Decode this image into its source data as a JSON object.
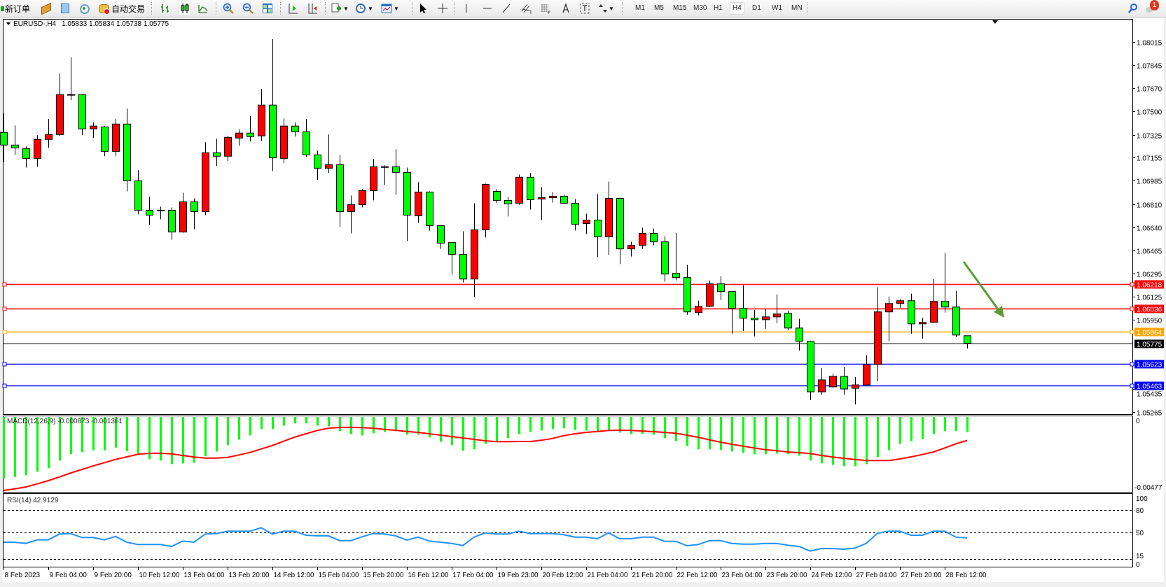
{
  "toolbar": {
    "new_order_label": "新订单",
    "auto_trading_label": "自动交易",
    "icons": [
      "new-order-icon",
      "market-watch-icon",
      "navigator-icon",
      "signals-icon",
      "auto-trading-icon",
      "bar-chart-icon",
      "candlestick-icon",
      "line-chart-icon",
      "zoom-in-icon",
      "zoom-out-icon",
      "tile-windows-icon",
      "auto-scroll-icon",
      "chart-shift-icon",
      "indicators-icon",
      "periods-icon",
      "templates-icon",
      "cursor-icon",
      "crosshair-icon",
      "vertical-line-icon",
      "horizontal-line-icon",
      "trendline-icon",
      "equidistant-channel-icon",
      "fibonacci-icon",
      "text-icon",
      "text-label-icon",
      "arrows-icon",
      "search-icon",
      "notification-icon"
    ],
    "timeframes": [
      "M1",
      "M5",
      "M15",
      "M30",
      "H1",
      "H4",
      "D1",
      "W1",
      "MN"
    ],
    "active_timeframe": "H4",
    "notification_count": "1"
  },
  "chart": {
    "symbol": "EURUSD-,H4",
    "ohlc_text": "1.05833 1.05834 1.05738 1.05775",
    "price_axis_labels": [
      "1.08015",
      "1.07845",
      "1.07670",
      "1.07500",
      "1.07325",
      "1.07155",
      "1.06985",
      "1.06810",
      "1.06640",
      "1.06465",
      "1.06295",
      "1.06125",
      "1.05950",
      "1.05435",
      "1.05265"
    ],
    "horizontal_lines": [
      {
        "price": "1.06218",
        "color": "#ff0000"
      },
      {
        "price": "1.06036",
        "color": "#ff0000"
      },
      {
        "price": "1.05864",
        "color": "#ffa500"
      },
      {
        "price": "1.05775",
        "color": "#000000",
        "current": true
      },
      {
        "price": "1.05623",
        "color": "#0000ff"
      },
      {
        "price": "1.05463",
        "color": "#0000ff"
      }
    ],
    "bull_color": "#ff0000",
    "bear_color": "#00ff00",
    "arrow_color": "#5a9e32",
    "time_labels": [
      "8 Feb 2023",
      "9 Feb 04:00",
      "9 Feb 20:00",
      "10 Feb 12:00",
      "13 Feb 04:00",
      "13 Feb 20:00",
      "14 Feb 12:00",
      "15 Feb 04:00",
      "15 Feb 20:00",
      "16 Feb 12:00",
      "17 Feb 04:00",
      "19 Feb 23:00",
      "20 Feb 12:00",
      "21 Feb 04:00",
      "21 Feb 20:00",
      "22 Feb 12:00",
      "23 Feb 04:00",
      "23 Feb 20:00",
      "24 Feb 12:00",
      "27 Feb 04:00",
      "27 Feb 20:00",
      "28 Feb 12:00"
    ]
  },
  "macd": {
    "label": "MACD(12,26,9) -0.000873 -0.001361",
    "axis_labels": [
      "0",
      "-0.00477"
    ],
    "histogram_color": "#00ff00",
    "signal_color": "#ff0000"
  },
  "rsi": {
    "label": "RSI(14) 42.9129",
    "levels": [
      "80",
      "50",
      "15"
    ],
    "axis_labels": [
      "100",
      "80",
      "50",
      "15",
      "0"
    ],
    "line_color": "#1e90ff"
  },
  "chart_data": {
    "type": "candlestick",
    "timeframe": "H4",
    "ohlc": [
      [
        1.07343,
        1.07483,
        1.07124,
        1.07249
      ],
      [
        1.07249,
        1.07395,
        1.07176,
        1.07228
      ],
      [
        1.07223,
        1.07239,
        1.07082,
        1.0715
      ],
      [
        1.0715,
        1.07322,
        1.07088,
        1.07291
      ],
      [
        1.07291,
        1.07442,
        1.07228,
        1.07327
      ],
      [
        1.07327,
        1.0778,
        1.07317,
        1.07624
      ],
      [
        1.07624,
        1.079,
        1.07582,
        1.0762
      ],
      [
        1.07624,
        1.0763,
        1.07322,
        1.07369
      ],
      [
        1.07369,
        1.07416,
        1.07301,
        1.0739
      ],
      [
        1.07384,
        1.0739,
        1.07166,
        1.07202
      ],
      [
        1.07202,
        1.07442,
        1.07166,
        1.07405
      ],
      [
        1.07405,
        1.0752,
        1.06905,
        1.06983
      ],
      [
        1.06983,
        1.07062,
        1.06734,
        1.06765
      ],
      [
        1.06765,
        1.06864,
        1.06655,
        1.06728
      ],
      [
        1.06765,
        1.06791,
        1.06697,
        1.06762
      ],
      [
        1.06765,
        1.06786,
        1.06546,
        1.06603
      ],
      [
        1.06603,
        1.06895,
        1.06598,
        1.06827
      ],
      [
        1.06827,
        1.06853,
        1.06624,
        1.06754
      ],
      [
        1.06754,
        1.0727,
        1.06728,
        1.07192
      ],
      [
        1.07192,
        1.07296,
        1.07093,
        1.07166
      ],
      [
        1.07166,
        1.07317,
        1.07129,
        1.07306
      ],
      [
        1.07301,
        1.07364,
        1.07244,
        1.07338
      ],
      [
        1.07338,
        1.07463,
        1.07275,
        1.07312
      ],
      [
        1.07317,
        1.07666,
        1.0728,
        1.07546
      ],
      [
        1.07546,
        1.08035,
        1.07056,
        1.07155
      ],
      [
        1.0715,
        1.07447,
        1.07114,
        1.0739
      ],
      [
        1.0739,
        1.07416,
        1.07312,
        1.07348
      ],
      [
        1.07348,
        1.07442,
        1.07161,
        1.07176
      ],
      [
        1.07176,
        1.07207,
        1.06989,
        1.07077
      ],
      [
        1.07077,
        1.07327,
        1.07041,
        1.07103
      ],
      [
        1.07103,
        1.07176,
        1.0664,
        1.06754
      ],
      [
        1.06754,
        1.06874,
        1.06593,
        1.06806
      ],
      [
        1.06806,
        1.06921,
        1.06786,
        1.06911
      ],
      [
        1.06911,
        1.07145,
        1.06838,
        1.07088
      ],
      [
        1.07088,
        1.07098,
        1.06952,
        1.07085
      ],
      [
        1.07088,
        1.07218,
        1.06879,
        1.07046
      ],
      [
        1.07046,
        1.07082,
        1.06536,
        1.06728
      ],
      [
        1.06723,
        1.06973,
        1.06671,
        1.069
      ],
      [
        1.069,
        1.06905,
        1.06614,
        1.0665
      ],
      [
        1.0665,
        1.06655,
        1.06478,
        1.0652
      ],
      [
        1.06525,
        1.06528,
        1.06286,
        1.06437
      ],
      [
        1.06437,
        1.06609,
        1.06228,
        1.06254
      ],
      [
        1.06254,
        1.06817,
        1.06119,
        1.06619
      ],
      [
        1.06619,
        1.06962,
        1.06562,
        1.06957
      ],
      [
        1.06905,
        1.06921,
        1.06817,
        1.06838
      ],
      [
        1.06838,
        1.06864,
        1.06718,
        1.06812
      ],
      [
        1.06817,
        1.0703,
        1.06806,
        1.0701
      ],
      [
        1.0701,
        1.07041,
        1.0677,
        1.06843
      ],
      [
        1.06848,
        1.06937,
        1.06692,
        1.06858
      ],
      [
        1.06858,
        1.069,
        1.06822,
        1.06869
      ],
      [
        1.06869,
        1.06879,
        1.06812,
        1.06817
      ],
      [
        1.06817,
        1.06848,
        1.06614,
        1.06661
      ],
      [
        1.06666,
        1.06739,
        1.06588,
        1.06692
      ],
      [
        1.06692,
        1.06885,
        1.06416,
        1.06567
      ],
      [
        1.06567,
        1.06978,
        1.06432,
        1.06853
      ],
      [
        1.06853,
        1.06858,
        1.06364,
        1.06478
      ],
      [
        1.06478,
        1.0653,
        1.06421,
        1.06504
      ],
      [
        1.06504,
        1.06635,
        1.06478,
        1.06593
      ],
      [
        1.06593,
        1.06629,
        1.06504,
        1.0653
      ],
      [
        1.0653,
        1.06572,
        1.06234,
        1.06291
      ],
      [
        1.06296,
        1.06598,
        1.06244,
        1.06265
      ],
      [
        1.06265,
        1.06359,
        1.05989,
        1.0601
      ],
      [
        1.06005,
        1.06093,
        1.05984,
        1.06051
      ],
      [
        1.06051,
        1.06244,
        1.06046,
        1.06218
      ],
      [
        1.06218,
        1.06275,
        1.06098,
        1.06161
      ],
      [
        1.06161,
        1.06166,
        1.05848,
        1.06036
      ],
      [
        1.06036,
        1.06208,
        1.05869,
        1.05963
      ],
      [
        1.05963,
        1.06025,
        1.05828,
        1.05952
      ],
      [
        1.05952,
        1.06031,
        1.05885,
        1.05973
      ],
      [
        1.05973,
        1.0614,
        1.05926,
        1.05994
      ],
      [
        1.05999,
        1.0602,
        1.05874,
        1.0589
      ],
      [
        1.0589,
        1.05958,
        1.05723,
        1.05791
      ],
      [
        1.05791,
        1.05796,
        1.05354,
        1.05416
      ],
      [
        1.05416,
        1.05593,
        1.05395,
        1.05505
      ],
      [
        1.05453,
        1.05551,
        1.05448,
        1.05531
      ],
      [
        1.05531,
        1.05598,
        1.05395,
        1.05437
      ],
      [
        1.05442,
        1.05525,
        1.05322,
        1.05468
      ],
      [
        1.05468,
        1.05687,
        1.05463,
        1.05619
      ],
      [
        1.05619,
        1.06192,
        1.05494,
        1.0601
      ],
      [
        1.0601,
        1.06124,
        1.05791,
        1.06072
      ],
      [
        1.06072,
        1.06103,
        1.06041,
        1.06093
      ],
      [
        1.06093,
        1.06145,
        1.05848,
        1.05921
      ],
      [
        1.05921,
        1.05963,
        1.05812,
        1.05932
      ],
      [
        1.05932,
        1.06254,
        1.05926,
        1.06088
      ],
      [
        1.06088,
        1.06447,
        1.06005,
        1.06046
      ],
      [
        1.06046,
        1.06166,
        1.05822,
        1.05838
      ],
      [
        1.05833,
        1.05834,
        1.05738,
        1.05775
      ]
    ],
    "macd_histogram": [
      -0.003566,
      -0.003485,
      -0.00339,
      -0.003187,
      -0.002983,
      -0.002536,
      -0.00217,
      -0.002048,
      -0.001939,
      -0.001939,
      -0.001776,
      -0.00198,
      -0.002115,
      -0.002454,
      -0.002536,
      -0.002739,
      -0.002698,
      -0.002658,
      -0.002278,
      -0.002007,
      -0.001641,
      -0.001315,
      -0.001071,
      -0.000705,
      -0.000705,
      -0.000502,
      -0.00038,
      -0.00038,
      -0.000502,
      -0.000542,
      -0.000827,
      -0.00099,
      -0.001071,
      -0.000949,
      -0.000868,
      -0.000827,
      -0.001031,
      -0.001031,
      -0.001193,
      -0.001437,
      -0.001641,
      -0.001966,
      -0.001885,
      -0.001559,
      -0.001424,
      -0.001234,
      -0.00099,
      -0.000868,
      -0.000786,
      -0.000705,
      -0.000664,
      -0.000746,
      -0.000786,
      -0.000827,
      -0.000746,
      -0.000909,
      -0.00099,
      -0.00099,
      -0.001031,
      -0.001234,
      -0.001397,
      -0.001681,
      -0.001885,
      -0.001885,
      -0.001926,
      -0.002007,
      -0.002088,
      -0.00217,
      -0.00217,
      -0.002129,
      -0.00217,
      -0.002251,
      -0.002536,
      -0.002698,
      -0.00278,
      -0.002861,
      -0.002861,
      -0.002739,
      -0.002332,
      -0.001926,
      -0.001559,
      -0.001397,
      -0.001275,
      -0.00099,
      -0.000827,
      -0.000827,
      -0.000873
    ],
    "macd_signal": [
      -0.004271,
      -0.004176,
      -0.004068,
      -0.003892,
      -0.003702,
      -0.003485,
      -0.003254,
      -0.003051,
      -0.002848,
      -0.002658,
      -0.002468,
      -0.002319,
      -0.00217,
      -0.002115,
      -0.002102,
      -0.002142,
      -0.002237,
      -0.002332,
      -0.002387,
      -0.002387,
      -0.002346,
      -0.00221,
      -0.002061,
      -0.001858,
      -0.001654,
      -0.00141,
      -0.001166,
      -0.000976,
      -0.000786,
      -0.000651,
      -0.00061,
      -0.000597,
      -0.000624,
      -0.000651,
      -0.000719,
      -0.000773,
      -0.000841,
      -0.000895,
      -0.000976,
      -0.001058,
      -0.001139,
      -0.00122,
      -0.001302,
      -0.001383,
      -0.001437,
      -0.001437,
      -0.001424,
      -0.001424,
      -0.001356,
      -0.001248,
      -0.001085,
      -0.000976,
      -0.000895,
      -0.000841,
      -0.000786,
      -0.000759,
      -0.000786,
      -0.000814,
      -0.000854,
      -0.000895,
      -0.000949,
      -0.001058,
      -0.00118,
      -0.001329,
      -0.001464,
      -0.001587,
      -0.001695,
      -0.001803,
      -0.001898,
      -0.001966,
      -0.002034,
      -0.002075,
      -0.002129,
      -0.002237,
      -0.002332,
      -0.0024,
      -0.002468,
      -0.002536,
      -0.002536,
      -0.002536,
      -0.002441,
      -0.002319,
      -0.002183,
      -0.002034,
      -0.001803,
      -0.001559,
      -0.001361
    ],
    "rsi": [
      37.3,
      37.3,
      35.7,
      40.4,
      40.4,
      48.1,
      48.8,
      43.5,
      43.5,
      40.4,
      45.0,
      37.3,
      34.2,
      34.2,
      34.2,
      31.7,
      38.8,
      37.3,
      48.1,
      48.8,
      51.9,
      51.9,
      51.9,
      56.5,
      48.1,
      51.9,
      51.9,
      46.6,
      45.7,
      45.7,
      39.4,
      39.4,
      44.4,
      48.8,
      48.1,
      45.7,
      40.1,
      44.1,
      38.8,
      37.3,
      35.7,
      32.9,
      44.1,
      49.7,
      48.1,
      48.1,
      51.9,
      48.8,
      48.8,
      48.8,
      47.2,
      44.1,
      44.1,
      41.9,
      49.7,
      41.9,
      41.9,
      44.1,
      44.1,
      38.5,
      38.5,
      32.6,
      34.2,
      39.4,
      39.4,
      35.7,
      34.8,
      34.8,
      35.7,
      35.7,
      33.2,
      31.7,
      25.5,
      28.9,
      28.9,
      28.0,
      29.5,
      35.7,
      49.1,
      51.9,
      51.9,
      46.6,
      46.6,
      51.9,
      51.9,
      44.1,
      42.9
    ],
    "ylim": [
      1.0525,
      1.08186
    ],
    "grid": false
  }
}
